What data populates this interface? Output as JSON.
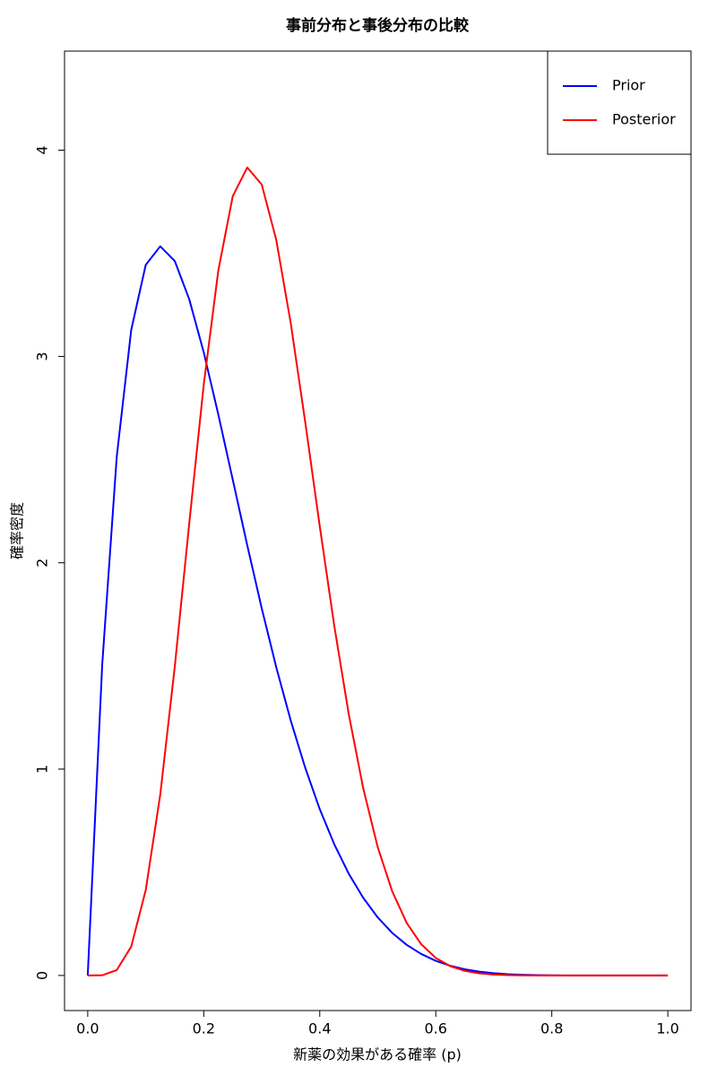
{
  "chart_data": {
    "type": "line",
    "title": "事前分布と事後分布の比較",
    "x_label": "新薬の効果がある確率 (p)",
    "y_label": "確率密度",
    "x": [
      0,
      0.025,
      0.05,
      0.075,
      0.1,
      0.125,
      0.15,
      0.175,
      0.2,
      0.225,
      0.25,
      0.275,
      0.3,
      0.325,
      0.35,
      0.375,
      0.4,
      0.425,
      0.45,
      0.475,
      0.5,
      0.525,
      0.55,
      0.575,
      0.6,
      0.625,
      0.65,
      0.675,
      0.7,
      0.725,
      0.75,
      0.775,
      0.8,
      0.825,
      0.85,
      0.875,
      0.9,
      0.925,
      0.95,
      0.975,
      1
    ],
    "series": [
      {
        "name": "Prior",
        "color": "#0000ff",
        "values": [
          0,
          1.508,
          2.514,
          3.129,
          3.444,
          3.534,
          3.463,
          3.277,
          3.02,
          2.72,
          2.403,
          2.085,
          1.779,
          1.494,
          1.235,
          1.006,
          0.806,
          0.636,
          0.493,
          0.376,
          0.281,
          0.206,
          0.148,
          0.104,
          0.0708,
          0.0469,
          0.0301,
          0.0186,
          0.011,
          0.0062,
          0.0033,
          0.0016,
          0.0007,
          0.0003,
          0.0001,
          0,
          0,
          0,
          0,
          0,
          0
        ]
      },
      {
        "name": "Posterior",
        "color": "#ff0000",
        "values": [
          0,
          0.001,
          0.026,
          0.14,
          0.414,
          0.876,
          1.495,
          2.191,
          2.864,
          3.415,
          3.777,
          3.916,
          3.833,
          3.565,
          3.161,
          2.681,
          2.177,
          1.695,
          1.266,
          0.906,
          0.621,
          0.407,
          0.254,
          0.151,
          0.085,
          0.045,
          0.0223,
          0.0103,
          0.0044,
          0.0017,
          0.0006,
          0.0002,
          0,
          0,
          0,
          0,
          0,
          0,
          0,
          0,
          0
        ]
      }
    ],
    "xlim": [
      -0.04,
      1.04
    ],
    "ylim": [
      -0.17,
      4.48
    ],
    "xticks": [
      {
        "value": 0,
        "label": "0.0"
      },
      {
        "value": 0.2,
        "label": "0.2"
      },
      {
        "value": 0.4,
        "label": "0.4"
      },
      {
        "value": 0.6,
        "label": "0.6"
      },
      {
        "value": 0.8,
        "label": "0.8"
      },
      {
        "value": 1,
        "label": "1.0"
      }
    ],
    "yticks": [
      0,
      1,
      2,
      3,
      4
    ],
    "legend": "topright"
  }
}
